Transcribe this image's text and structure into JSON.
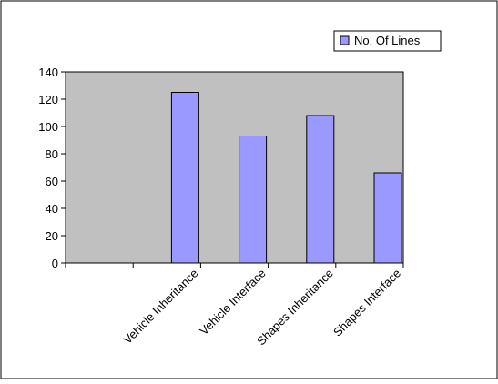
{
  "chart_data": {
    "type": "bar",
    "categories": [
      "",
      "Vehicle Inheritance",
      "Vehicle Interface",
      "Shapes Inheritance",
      "Shapes Interface"
    ],
    "series": [
      {
        "name": "No. Of Lines",
        "values": [
          0,
          125,
          93,
          108,
          66
        ]
      }
    ],
    "yticks": [
      "0",
      "20",
      "40",
      "60",
      "80",
      "100",
      "120",
      "140"
    ],
    "ylim": [
      0,
      140
    ],
    "ystep": 20,
    "grid": false,
    "legend_position": "top-right",
    "colors": {
      "bar_fill": "#9999ff",
      "bar_stroke": "#000000",
      "plot_background": "#c0c0c0",
      "frame": "#000000"
    }
  }
}
